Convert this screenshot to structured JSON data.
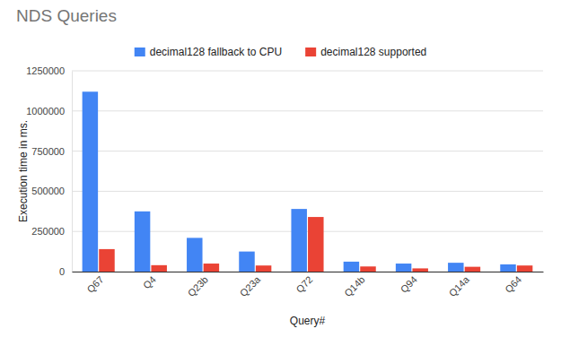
{
  "chart_data": {
    "type": "bar",
    "title": "NDS Queries",
    "x_label": "Query#",
    "y_label": "Execution time in ms.",
    "categories": [
      "Q67",
      "Q4",
      "Q23b",
      "Q23a",
      "Q72",
      "Q14b",
      "Q94",
      "Q14a",
      "Q64"
    ],
    "series": [
      {
        "name": "decimal128 fallback to CPU",
        "color": "#4285f4",
        "values": [
          1120000,
          375000,
          210000,
          125000,
          390000,
          62000,
          50000,
          55000,
          45000
        ]
      },
      {
        "name": "decimal128 supported",
        "color": "#ea4335",
        "values": [
          140000,
          40000,
          50000,
          38000,
          340000,
          32000,
          20000,
          30000,
          38000
        ]
      }
    ],
    "ylim": [
      0,
      1250000
    ],
    "yticks": [
      0,
      250000,
      500000,
      750000,
      1000000,
      1250000
    ],
    "grid": true,
    "legend": "top"
  }
}
